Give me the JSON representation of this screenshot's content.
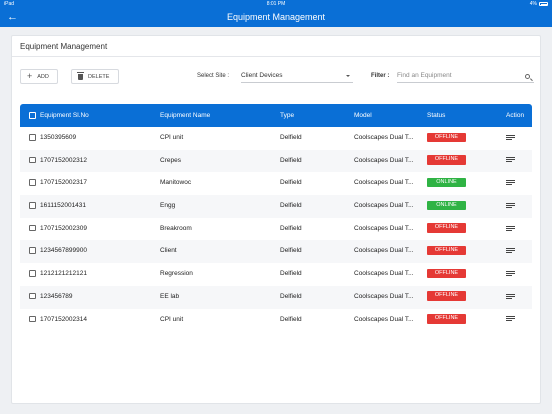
{
  "status_bar": {
    "device": "iPad",
    "time": "8:01 PM",
    "battery": "4%"
  },
  "navbar": {
    "back_icon": "arrow-left-icon",
    "title": "Equipment Management"
  },
  "card": {
    "title": "Equipment Management"
  },
  "toolbar": {
    "add_label": "ADD",
    "delete_label": "DELETE",
    "select_site_label": "Select Site :",
    "select_site_value": "Client Devices",
    "filter_label": "Filter :",
    "filter_placeholder": "Find an Equipment"
  },
  "table": {
    "headers": {
      "serial": "Equipment Sl.No",
      "name": "Equipment Name",
      "type": "Type",
      "model": "Model",
      "status": "Status",
      "action": "Action"
    },
    "rows": [
      {
        "serial": "1350395609",
        "name": "CPI unit",
        "type": "Delfield",
        "model": "Coolscapes Dual T...",
        "status": "OFFLINE"
      },
      {
        "serial": "1707152002312",
        "name": "Crepes",
        "type": "Delfield",
        "model": "Coolscapes Dual T...",
        "status": "OFFLINE"
      },
      {
        "serial": "1707152002317",
        "name": "Manitowoc",
        "type": "Delfield",
        "model": "Coolscapes Dual T...",
        "status": "ONLINE"
      },
      {
        "serial": "1611152001431",
        "name": "Engg",
        "type": "Delfield",
        "model": "Coolscapes Dual T...",
        "status": "ONLINE"
      },
      {
        "serial": "1707152002309",
        "name": "Breakroom",
        "type": "Delfield",
        "model": "Coolscapes Dual T...",
        "status": "OFFLINE"
      },
      {
        "serial": "1234567899900",
        "name": "Client",
        "type": "Delfield",
        "model": "Coolscapes Dual T...",
        "status": "OFFLINE"
      },
      {
        "serial": "1212121212121",
        "name": "Regression",
        "type": "Delfield",
        "model": "Coolscapes Dual T...",
        "status": "OFFLINE"
      },
      {
        "serial": "123456789",
        "name": "EE lab",
        "type": "Delfield",
        "model": "Coolscapes Dual T...",
        "status": "OFFLINE"
      },
      {
        "serial": "1707152002314",
        "name": "CPI unit",
        "type": "Delfield",
        "model": "Coolscapes Dual T...",
        "status": "OFFLINE"
      }
    ]
  },
  "colors": {
    "primary": "#0a6fd6",
    "offline": "#e53935",
    "online": "#2fb344"
  }
}
